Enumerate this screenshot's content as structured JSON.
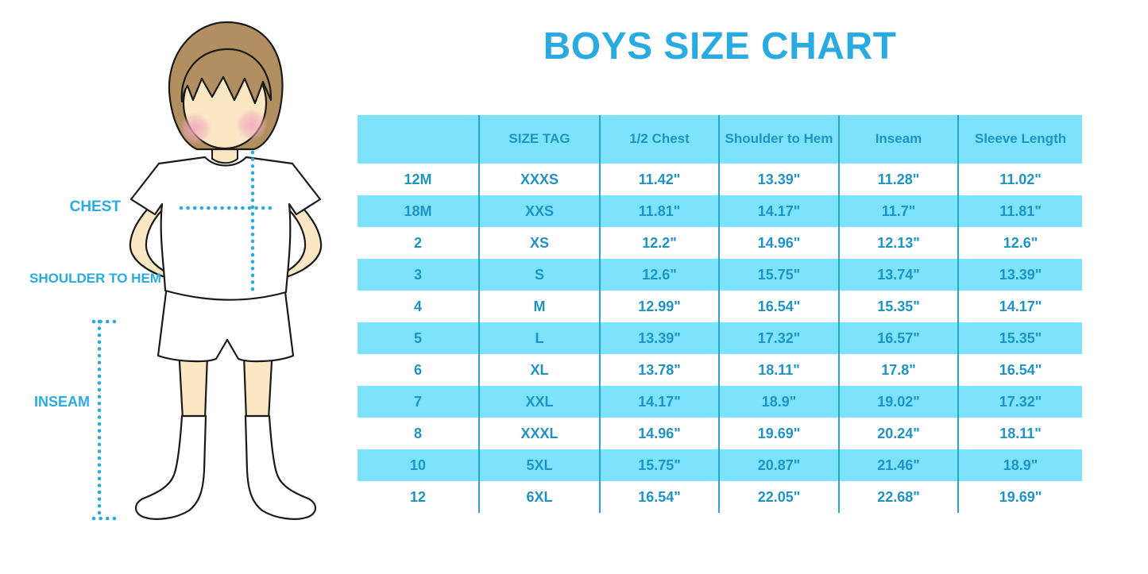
{
  "title": "BOYS SIZE CHART",
  "figure": {
    "labels": [
      {
        "label": "CHEST"
      },
      {
        "label": "SHOULDER TO HEM"
      },
      {
        "label": "INSEAM"
      }
    ]
  },
  "colors": {
    "accent_cyan": "#29ABE2",
    "table_stripe": "#7DE3FC",
    "table_separator": "#2BA3D2",
    "table_text": "#1E93C6",
    "skin": "#FBE7C4",
    "hair": "#B28F60",
    "blush": "#F0A9BE"
  },
  "chart_data": {
    "type": "table",
    "title": "BOYS SIZE CHART",
    "columns": [
      "",
      "SIZE TAG",
      "1/2 Chest",
      "Shoulder to Hem",
      "Inseam",
      "Sleeve Length"
    ],
    "rows": [
      [
        "12M",
        "XXXS",
        "11.42\"",
        "13.39\"",
        "11.28\"",
        "11.02\""
      ],
      [
        "18M",
        "XXS",
        "11.81\"",
        "14.17\"",
        "11.7\"",
        "11.81\""
      ],
      [
        "2",
        "XS",
        "12.2\"",
        "14.96\"",
        "12.13\"",
        "12.6\""
      ],
      [
        "3",
        "S",
        "12.6\"",
        "15.75\"",
        "13.74\"",
        "13.39\""
      ],
      [
        "4",
        "M",
        "12.99\"",
        "16.54\"",
        "15.35\"",
        "14.17\""
      ],
      [
        "5",
        "L",
        "13.39\"",
        "17.32\"",
        "16.57\"",
        "15.35\""
      ],
      [
        "6",
        "XL",
        "13.78\"",
        "18.11\"",
        "17.8\"",
        "16.54\""
      ],
      [
        "7",
        "XXL",
        "14.17\"",
        "18.9\"",
        "19.02\"",
        "17.32\""
      ],
      [
        "8",
        "XXXL",
        "14.96\"",
        "19.69\"",
        "20.24\"",
        "18.11\""
      ],
      [
        "10",
        "5XL",
        "15.75\"",
        "20.87\"",
        "21.46\"",
        "18.9\""
      ],
      [
        "12",
        "6XL",
        "16.54\"",
        "22.05\"",
        "22.68\"",
        "19.69\""
      ]
    ],
    "striped_rows": "even rows highlighted #7DE3FC, header highlighted",
    "legend_position": "none",
    "grid": "vertical separators only"
  }
}
